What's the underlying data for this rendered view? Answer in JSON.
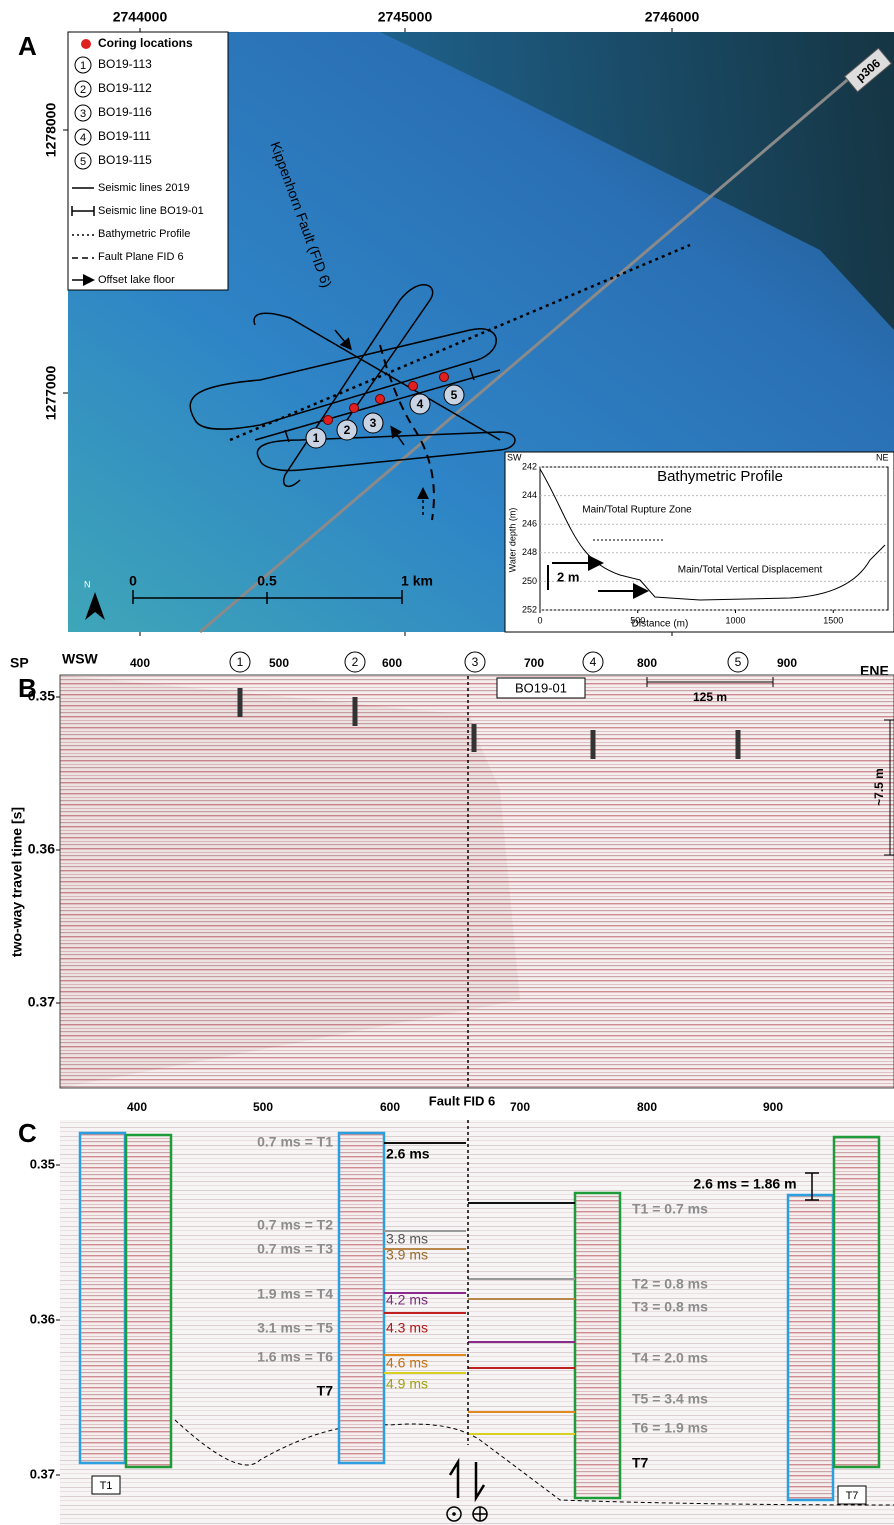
{
  "panel_a": {
    "label": "A",
    "x_ticks": [
      2744000,
      2745000,
      2746000
    ],
    "y_ticks": [
      1278000,
      1277000
    ],
    "legend": {
      "title": "Coring locations",
      "cores": [
        {
          "num": "1",
          "name": "BO19-113"
        },
        {
          "num": "2",
          "name": "BO19-112"
        },
        {
          "num": "3",
          "name": "BO19-116"
        },
        {
          "num": "4",
          "name": "BO19-111"
        },
        {
          "num": "5",
          "name": "BO19-115"
        }
      ],
      "items": [
        "Seismic lines 2019",
        "Seismic line BO19-01",
        "Bathymetric Profile",
        "Fault Plane FID 6",
        "Offset lake floor"
      ]
    },
    "fault_label": "Kippenhorn Fault (FID 6)",
    "line_label": "p306",
    "north": "N",
    "scale": [
      "0",
      "0.5",
      "1 km"
    ],
    "inset": {
      "title": "Bathymetric Profile",
      "sw": "SW",
      "ne": "NE",
      "y_label": "Water depth (m)",
      "x_label": "Distance (m)",
      "y_ticks": [
        242,
        244,
        246,
        248,
        250,
        252
      ],
      "x_ticks": [
        0,
        500,
        1000,
        1500
      ],
      "rupture": "Main/Total Rupture Zone",
      "displacement": "Main/Total Vertical Displacement",
      "offset": "2 m"
    }
  },
  "panel_b": {
    "label": "B",
    "sp": "SP",
    "left_dir": "WSW",
    "right_dir": "ENE",
    "sp_ticks": [
      400,
      500,
      600,
      700,
      800,
      900
    ],
    "cores": [
      "1",
      "2",
      "3",
      "4",
      "5"
    ],
    "line_name": "BO19-01",
    "scale": "125 m",
    "y_label": "two-way travel time [s]",
    "y_ticks": [
      0.35,
      0.36,
      0.37
    ],
    "offset": "~7.5 m"
  },
  "panel_c": {
    "label": "C",
    "fault": "Fault FID 6",
    "sp_ticks": [
      400,
      500,
      600,
      700,
      800,
      900
    ],
    "y_ticks": [
      0.35,
      0.36,
      0.37
    ],
    "left_units": [
      "0.7 ms = T1",
      "0.7 ms = T2",
      "0.7 ms = T3",
      "1.9 ms = T4",
      "3.1 ms = T5",
      "1.6 ms = T6",
      "T7"
    ],
    "middle_units": [
      "2.6 ms",
      "3.8 ms",
      "3.9 ms",
      "4.2 ms",
      "4.3 ms",
      "4.6 ms",
      "4.9 ms"
    ],
    "right_units": [
      "T1 = 0.7 ms",
      "T2 = 0.8 ms",
      "T3 = 0.8 ms",
      "T4 = 2.0 ms",
      "T5 = 3.4 ms",
      "T6 = 1.9 ms",
      "T7"
    ],
    "offset": "2.6 ms = 1.86 m",
    "box_left": "T1",
    "box_right": "T7"
  }
}
